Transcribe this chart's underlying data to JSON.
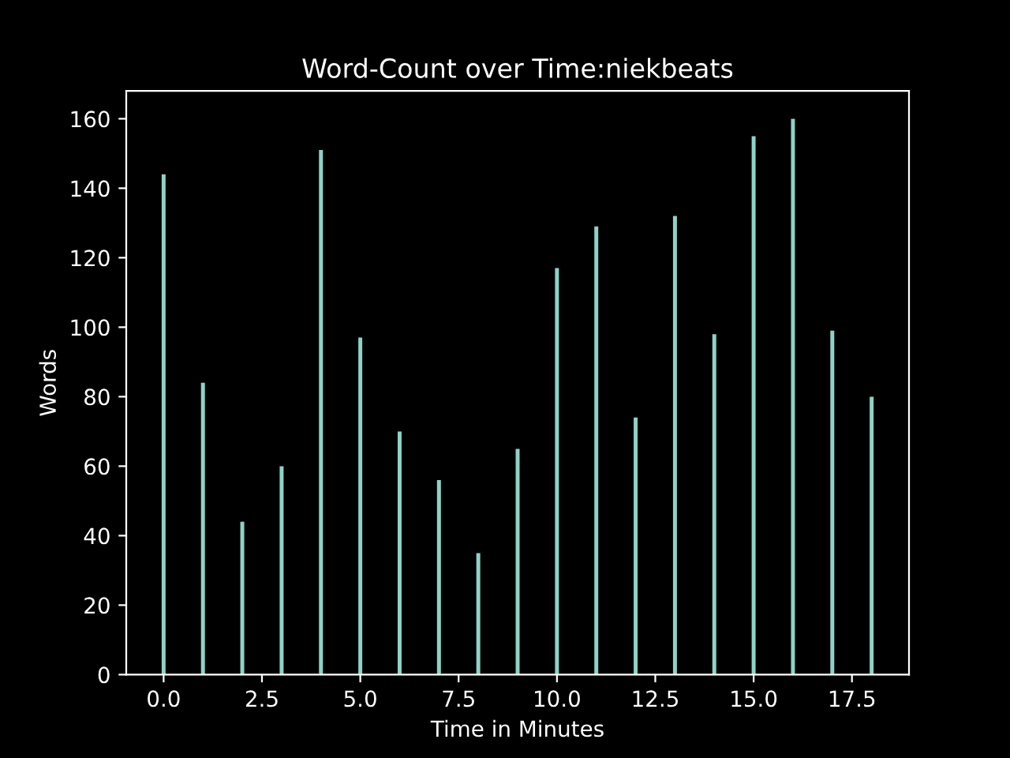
{
  "chart_data": {
    "type": "bar",
    "title": "Word-Count over Time:niekbeats",
    "xlabel": "Time in Minutes",
    "ylabel": "Words",
    "x": [
      0,
      1,
      2,
      3,
      4,
      5,
      6,
      7,
      8,
      9,
      10,
      11,
      12,
      13,
      14,
      15,
      16,
      17,
      18
    ],
    "values": [
      144,
      84,
      44,
      60,
      151,
      97,
      70,
      56,
      35,
      65,
      117,
      129,
      74,
      132,
      98,
      155,
      160,
      99,
      80
    ],
    "color": "#8dd3c7",
    "xlim": [
      -0.95,
      18.95
    ],
    "xticks": [
      {
        "value": 0,
        "label": "0.0"
      },
      {
        "value": 2.5,
        "label": "2.5"
      },
      {
        "value": 5,
        "label": "5.0"
      },
      {
        "value": 7.5,
        "label": "7.5"
      },
      {
        "value": 10,
        "label": "10.0"
      },
      {
        "value": 12.5,
        "label": "12.5"
      },
      {
        "value": 15,
        "label": "15.0"
      },
      {
        "value": 17.5,
        "label": "17.5"
      }
    ],
    "ylim": [
      0,
      168
    ],
    "yticks": [
      0,
      20,
      40,
      60,
      80,
      100,
      120,
      140,
      160
    ],
    "grid": false,
    "legend": false
  }
}
